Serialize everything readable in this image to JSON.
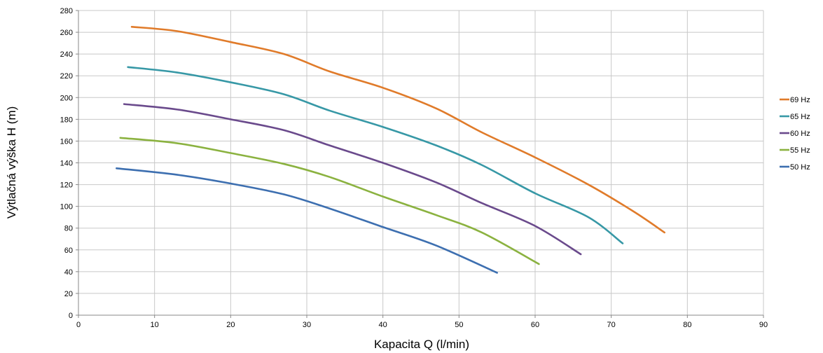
{
  "chart_data": {
    "type": "line",
    "xlabel": "Kapacita Q (l/min)",
    "ylabel": "Výtlačná výška H (m)",
    "xlim": [
      0,
      90
    ],
    "ylim": [
      0,
      280
    ],
    "xticks": [
      0,
      10,
      20,
      30,
      40,
      50,
      60,
      70,
      80,
      90
    ],
    "yticks": [
      0,
      20,
      40,
      60,
      80,
      100,
      120,
      140,
      160,
      180,
      200,
      220,
      240,
      260,
      280
    ],
    "grid": true,
    "legend_position": "right",
    "series": [
      {
        "name": "69 Hz",
        "color": "#E07B2A",
        "points": [
          [
            7,
            265
          ],
          [
            13,
            261
          ],
          [
            20,
            251
          ],
          [
            27,
            240
          ],
          [
            33,
            224
          ],
          [
            40,
            209
          ],
          [
            47,
            190
          ],
          [
            53,
            168
          ],
          [
            60,
            145
          ],
          [
            67,
            120
          ],
          [
            73,
            95
          ],
          [
            77,
            76
          ]
        ]
      },
      {
        "name": "65 Hz",
        "color": "#3798A6",
        "points": [
          [
            6.5,
            228
          ],
          [
            13,
            223
          ],
          [
            20,
            214
          ],
          [
            27,
            203
          ],
          [
            33,
            188
          ],
          [
            40,
            173
          ],
          [
            47,
            156
          ],
          [
            53,
            138
          ],
          [
            60,
            112
          ],
          [
            67,
            90
          ],
          [
            71.5,
            66
          ]
        ]
      },
      {
        "name": "60 Hz",
        "color": "#6A4A8C",
        "points": [
          [
            6,
            194
          ],
          [
            13,
            189
          ],
          [
            20,
            180
          ],
          [
            27,
            170
          ],
          [
            33,
            156
          ],
          [
            40,
            140
          ],
          [
            47,
            122
          ],
          [
            53,
            103
          ],
          [
            60,
            82
          ],
          [
            66,
            56
          ]
        ]
      },
      {
        "name": "55 Hz",
        "color": "#8BB240",
        "points": [
          [
            5.5,
            163
          ],
          [
            13,
            158
          ],
          [
            20,
            149
          ],
          [
            27,
            139
          ],
          [
            33,
            127
          ],
          [
            40,
            109
          ],
          [
            47,
            92
          ],
          [
            53,
            76
          ],
          [
            60.5,
            47
          ]
        ]
      },
      {
        "name": "50 Hz",
        "color": "#3D6FB0",
        "points": [
          [
            5,
            135
          ],
          [
            13,
            129
          ],
          [
            20,
            121
          ],
          [
            27,
            111
          ],
          [
            33,
            98
          ],
          [
            40,
            81
          ],
          [
            47,
            64
          ],
          [
            55,
            39
          ]
        ]
      }
    ]
  }
}
